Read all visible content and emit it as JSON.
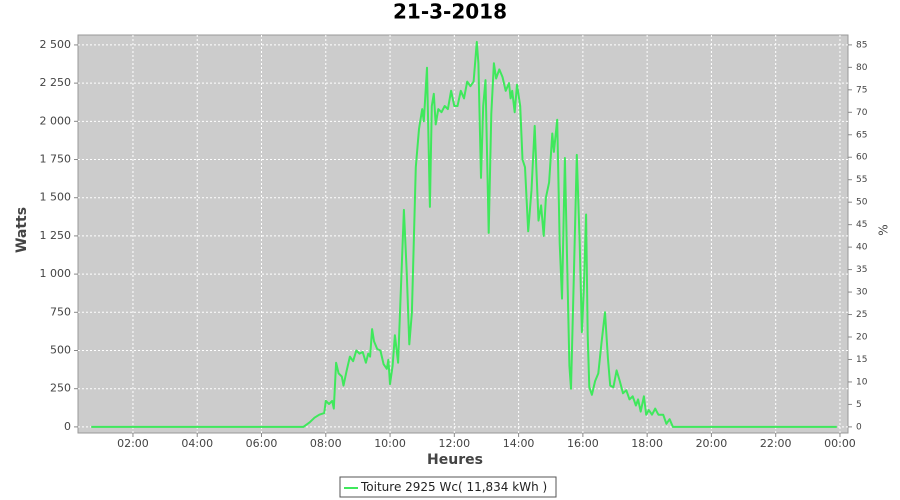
{
  "chart_data": {
    "type": "line",
    "title": "21-3-2018",
    "x_label": "Heures",
    "y_label": "Watts",
    "y2_label": "%",
    "grid": true,
    "legend": "bottom",
    "xlim": [
      0.29,
      24.25
    ],
    "xticks": [
      {
        "value": 2,
        "label": "02:00"
      },
      {
        "value": 4,
        "label": "04:00"
      },
      {
        "value": 6,
        "label": "06:00"
      },
      {
        "value": 8,
        "label": "08:00"
      },
      {
        "value": 10,
        "label": "10:00"
      },
      {
        "value": 12,
        "label": "12:00"
      },
      {
        "value": 14,
        "label": "14:00"
      },
      {
        "value": 16,
        "label": "16:00"
      },
      {
        "value": 18,
        "label": "18:00"
      },
      {
        "value": 20,
        "label": "20:00"
      },
      {
        "value": 22,
        "label": "22:00"
      },
      {
        "value": 24,
        "label": "00:00"
      }
    ],
    "ylim": [
      -40,
      2565
    ],
    "yticks": [
      0,
      250,
      500,
      750,
      {
        "value": 1000,
        "label": "1 000"
      },
      {
        "value": 1250,
        "label": "1 250"
      },
      {
        "value": 1500,
        "label": "1 500"
      },
      {
        "value": 1750,
        "label": "1 750"
      },
      {
        "value": 2000,
        "label": "2 000"
      },
      {
        "value": 2250,
        "label": "2 250"
      },
      {
        "value": 2500,
        "label": "2 500"
      }
    ],
    "y2lim": [
      -1.36,
      87.2
    ],
    "y2ticks": [
      0,
      5,
      10,
      15,
      20,
      25,
      30,
      35,
      40,
      45,
      50,
      55,
      60,
      65,
      70,
      75,
      80,
      85
    ],
    "series": [
      {
        "name": "Toiture 2925 Wc( 11,834 kWh )",
        "color": "#3fe85c",
        "x": [
          0.7,
          3,
          6,
          7.3,
          7.5,
          7.65,
          7.8,
          7.95,
          8.0,
          8.1,
          8.2,
          8.25,
          8.32,
          8.4,
          8.5,
          8.55,
          8.65,
          8.75,
          8.85,
          8.95,
          9.05,
          9.15,
          9.25,
          9.32,
          9.38,
          9.44,
          9.5,
          9.6,
          9.7,
          9.8,
          9.9,
          9.95,
          10.0,
          10.08,
          10.15,
          10.25,
          10.32,
          10.43,
          10.52,
          10.6,
          10.68,
          10.8,
          10.9,
          11.0,
          11.05,
          11.15,
          11.24,
          11.3,
          11.36,
          11.42,
          11.5,
          11.6,
          11.7,
          11.8,
          11.9,
          12.0,
          12.1,
          12.2,
          12.3,
          12.4,
          12.5,
          12.6,
          12.7,
          12.75,
          12.83,
          12.9,
          12.97,
          13.07,
          13.15,
          13.23,
          13.3,
          13.4,
          13.5,
          13.6,
          13.7,
          13.75,
          13.8,
          13.88,
          13.95,
          14.05,
          14.12,
          14.2,
          14.3,
          14.4,
          14.5,
          14.55,
          14.62,
          14.7,
          14.78,
          14.85,
          14.95,
          15.05,
          15.1,
          15.2,
          15.28,
          15.35,
          15.44,
          15.52,
          15.58,
          15.63,
          15.72,
          15.81,
          15.9,
          15.97,
          16.03,
          16.1,
          16.15,
          16.2,
          16.28,
          16.38,
          16.48,
          16.58,
          16.69,
          16.78,
          16.85,
          16.95,
          17.05,
          17.15,
          17.25,
          17.35,
          17.45,
          17.55,
          17.65,
          17.72,
          17.8,
          17.9,
          17.97,
          18.05,
          18.15,
          18.25,
          18.35,
          18.5,
          18.6,
          18.7,
          18.8,
          21,
          23.9
        ],
        "values": [
          0,
          0,
          0,
          0,
          30,
          60,
          80,
          90,
          170,
          150,
          170,
          120,
          420,
          350,
          330,
          270,
          370,
          460,
          430,
          500,
          480,
          490,
          420,
          480,
          460,
          640,
          560,
          510,
          500,
          410,
          380,
          440,
          280,
          400,
          600,
          420,
          800,
          1420,
          1000,
          540,
          750,
          1700,
          1950,
          2080,
          2000,
          2350,
          1440,
          2100,
          2180,
          1980,
          2080,
          2060,
          2100,
          2080,
          2200,
          2100,
          2100,
          2200,
          2150,
          2260,
          2230,
          2260,
          2520,
          2380,
          1630,
          2100,
          2270,
          1270,
          2050,
          2380,
          2280,
          2340,
          2290,
          2200,
          2250,
          2150,
          2200,
          2060,
          2240,
          2100,
          1750,
          1700,
          1280,
          1550,
          1970,
          1700,
          1350,
          1450,
          1250,
          1500,
          1600,
          1920,
          1800,
          2010,
          1200,
          840,
          1760,
          1000,
          400,
          250,
          1000,
          1780,
          1200,
          620,
          900,
          1390,
          600,
          260,
          210,
          300,
          350,
          550,
          750,
          450,
          270,
          260,
          370,
          300,
          220,
          240,
          180,
          200,
          140,
          180,
          100,
          200,
          80,
          110,
          80,
          120,
          80,
          80,
          20,
          50,
          0,
          0,
          0
        ]
      }
    ]
  }
}
